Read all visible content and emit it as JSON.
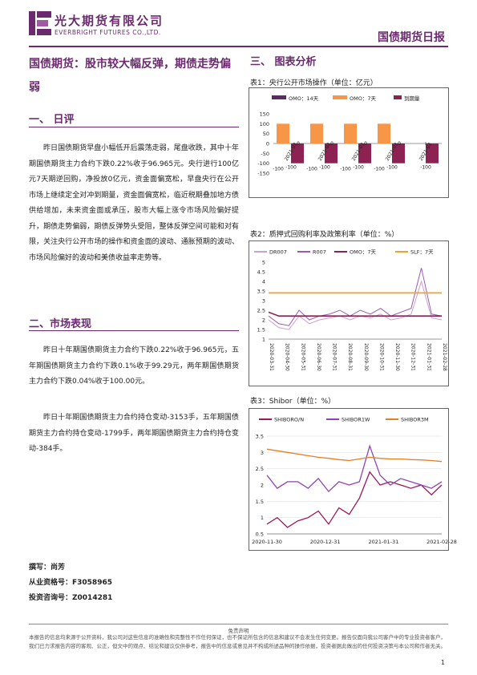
{
  "header": {
    "company_cn": "光大期货有限公司",
    "company_en": "EVERBRIGHT FUTURES CO.,LTD.",
    "report_title": "国债期货日报"
  },
  "main_title": "国债期货：股市较大幅反弹，期债走势偏弱",
  "sections": {
    "daily_comment": {
      "heading": "一、   日评",
      "text": "昨日国债期货早盘小幅低开后震荡走弱，尾盘收跌，其中十年期国债期货主力合约下跌0.22%收于96.965元。央行进行100亿元7天期逆回购，净投放0亿元，资金面偏宽松，早盘央行在公开市场上继续定全对冲到期量，资金面偏宽松，临近税期叠加地方债供给增加，未来资金面或承压，股市大幅上涨令市场风险偏好提升，期债走势偏弱，期债反弹势头受阻，整体反弹空间可能和对有限，关注央行公开市场的操作和资金面的波动、通胀预期的波动、市场风险偏好的波动和美债收益率走势等。"
    },
    "market": {
      "heading": "二、市场表现",
      "p1": "昨日十年期国债期货主力合约下跌0.22%收于96.965元，五年期国债期货主力合约下跌0.1%收于99.29元，两年期国债期货主力合约下跌0.04%收于100.00元。",
      "p2": "昨日十年期国债期货主力合约持仓变动-3153手，五年期国债期货主力合约持仓变动-1799手，两年期国债期货主力合约持仓变动-384手。"
    },
    "charts_heading": "三、   图表分析"
  },
  "author": {
    "writer": "撰写：尚芳",
    "qualification": "从业资格号：F3058965",
    "consult": "投资咨询号：Z0014281"
  },
  "disclaimer": {
    "title": "免责声明",
    "text": "本报告的信息均来源于公开资料，我公司对这些信息的准确性和完整性不作任何保证，也不保证所包含的信息和建议不会发生任何变更。报告仅面向我公司客户中的专业投资者客户，我们已力求报告内容的客观、公正，但文中的观点、结论和建议仅供参考，报告中的信息或意见并不构成所述品种的操作依据，投资者据此做出的任何投资决策与本公司和作者无关。"
  },
  "page_number": "1",
  "colors": {
    "brand": "#6b2a6e",
    "omo14": "#5c2a63",
    "omo7": "#f79646",
    "maturity": "#8b2252",
    "dr007": "#c8a2c8",
    "r007": "#9b59b6",
    "slf7": "#f0a030",
    "shibor_on": "#9b1b5a",
    "shibor_1w": "#8e44ad",
    "shibor_3m": "#e67e22"
  },
  "chart_data": [
    {
      "type": "bar",
      "title": "表1：央行公开市场操作（单位：亿元）",
      "series": [
        {
          "name": "OMO：14天",
          "values": [
            0,
            0,
            0,
            0,
            0
          ]
        },
        {
          "name": "OMO：7天",
          "values": [
            100,
            100,
            100,
            100,
            0
          ]
        },
        {
          "name": "到期量",
          "values": [
            -100,
            -100,
            -100,
            -100,
            -100
          ]
        }
      ],
      "categories": [
        "2021-03",
        "2021-03",
        "2021-03",
        "2021-03",
        "2021-03"
      ],
      "data_labels": [
        "-100",
        "-100",
        "-100",
        "-100",
        "-100",
        "-100",
        "-100",
        "-100",
        "0",
        "0",
        "0",
        "0"
      ],
      "yticks": [
        "150",
        "100",
        "50",
        "0",
        "-50",
        "-100",
        "-150"
      ],
      "ylim": [
        -150,
        150
      ],
      "legend": "top"
    },
    {
      "type": "line",
      "title": "表2：质押式回购利率及政策利率（单位：%）",
      "series": [
        {
          "name": "DR007",
          "values": [
            2.0,
            1.6,
            1.5,
            2.2,
            1.8,
            2.0,
            2.1,
            2.2,
            2.0,
            2.2,
            2.1,
            2.3,
            2.0,
            2.1,
            2.3,
            4.0,
            2.1,
            2.0
          ]
        },
        {
          "name": "R007",
          "values": [
            2.2,
            1.8,
            1.7,
            2.5,
            2.0,
            2.2,
            2.3,
            2.5,
            2.2,
            2.5,
            2.3,
            2.6,
            2.2,
            2.4,
            2.6,
            4.7,
            2.3,
            2.2
          ]
        },
        {
          "name": "OMO：7天",
          "values": [
            2.4,
            2.2,
            2.2,
            2.2,
            2.2,
            2.2,
            2.2,
            2.2,
            2.2,
            2.2,
            2.2,
            2.2,
            2.2,
            2.2,
            2.2,
            2.2,
            2.2,
            2.2
          ]
        },
        {
          "name": "SLF：7天",
          "values": [
            3.4,
            3.4,
            3.4,
            3.4,
            3.4,
            3.4,
            3.4,
            3.4,
            3.4,
            3.4,
            3.4,
            3.4,
            3.4,
            3.4,
            3.4,
            3.4,
            3.4,
            3.4
          ]
        }
      ],
      "xticks": [
        "2020-03-31",
        "2020-04-30",
        "2020-05-31",
        "2020-06-30",
        "2020-07-31",
        "2020-08-31",
        "2020-09-30",
        "2020-10-31",
        "2020-11-30",
        "2020-12-31",
        "2021-01-31",
        "2021-02-28"
      ],
      "yticks": [
        "5",
        "4.5",
        "4",
        "3.5",
        "3",
        "2.5",
        "2",
        "1.5",
        "1"
      ],
      "ylim": [
        1,
        5
      ],
      "legend": "top"
    },
    {
      "type": "line",
      "title": "表3：Shibor（单位：%）",
      "series": [
        {
          "name": "SHIBORO/N",
          "values": [
            0.8,
            1.0,
            0.7,
            0.9,
            1.0,
            1.2,
            0.8,
            1.3,
            1.1,
            1.6,
            2.4,
            2.0,
            2.1,
            2.0,
            1.9,
            2.0,
            1.7,
            2.0
          ]
        },
        {
          "name": "SHIBOR1W",
          "values": [
            2.3,
            1.9,
            2.1,
            2.1,
            1.9,
            2.2,
            1.8,
            2.1,
            2.0,
            2.1,
            3.2,
            2.3,
            2.0,
            2.2,
            2.1,
            2.0,
            1.9,
            2.1
          ]
        },
        {
          "name": "SHIBOR3M",
          "values": [
            3.1,
            3.05,
            3.0,
            2.95,
            2.9,
            2.85,
            2.82,
            2.78,
            2.75,
            2.8,
            2.85,
            2.82,
            2.8,
            2.8,
            2.78,
            2.77,
            2.75,
            2.72
          ]
        }
      ],
      "xticks": [
        "2020-11-30",
        "2020-12-31",
        "2021-01-31",
        "2021-02-28"
      ],
      "yticks": [
        "3.5",
        "3",
        "2.5",
        "2",
        "1.5",
        "1",
        "0.5"
      ],
      "ylim": [
        0.5,
        3.5
      ],
      "legend": "top"
    }
  ]
}
